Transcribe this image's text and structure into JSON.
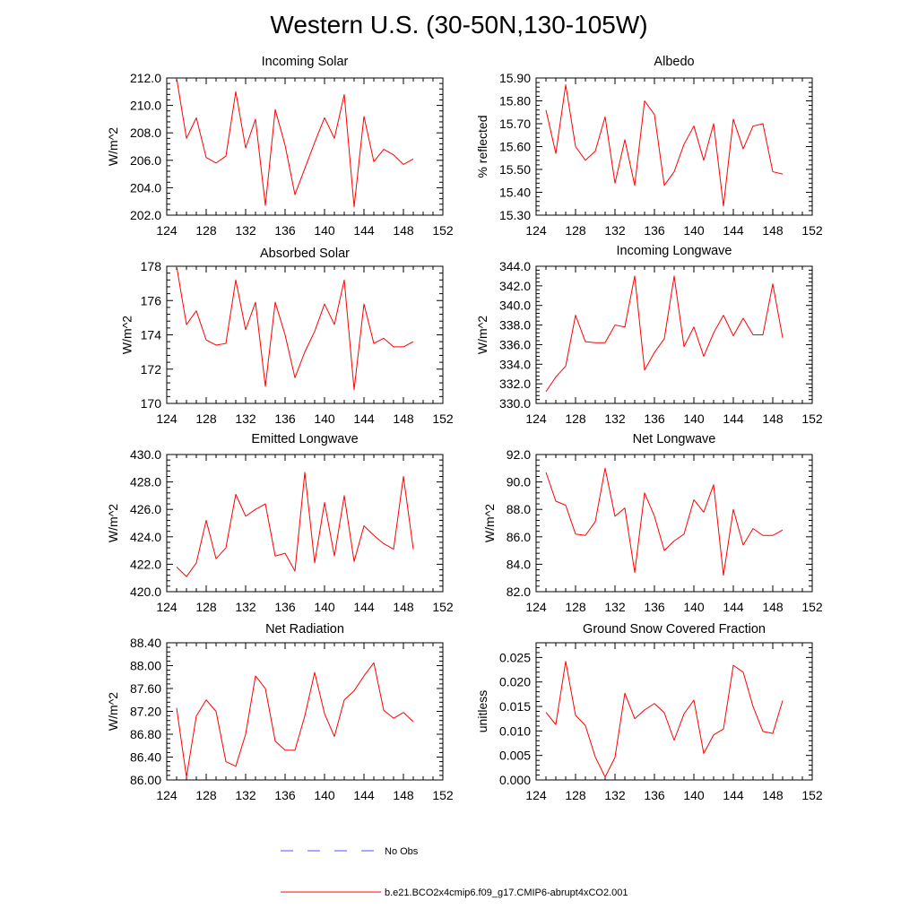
{
  "page": {
    "title": "Western U.S. (30-50N,130-105W)"
  },
  "legend": [
    {
      "label": "No Obs",
      "color": "#5050ff",
      "dash": true
    },
    {
      "label": "b.e21.BCO2x4cmip6.f09_g17.CMIP6-abrupt4xCO2.001",
      "color": "#ff0000",
      "dash": false
    }
  ],
  "chart_data": [
    {
      "type": "line",
      "title": "Incoming Solar",
      "ylabel": "W/m^2",
      "xlim": [
        124,
        152
      ],
      "xticks": [
        "124",
        "128",
        "132",
        "136",
        "140",
        "144",
        "148",
        "152"
      ],
      "ylim": [
        202,
        212
      ],
      "yticks": [
        "202.0",
        "204.0",
        "206.0",
        "208.0",
        "210.0",
        "212.0"
      ],
      "x": [
        125,
        126,
        127,
        128,
        129,
        130,
        131,
        132,
        133,
        134,
        135,
        136,
        137,
        138,
        139,
        140,
        141,
        142,
        143,
        144,
        145,
        146,
        147,
        148,
        149
      ],
      "series": [
        {
          "values": [
            212.0,
            207.6,
            209.1,
            206.2,
            205.8,
            206.3,
            211.0,
            206.9,
            209.0,
            202.7,
            209.7,
            207.1,
            203.5,
            205.4,
            207.3,
            209.1,
            207.6,
            210.8,
            202.6,
            209.2,
            205.9,
            206.8,
            206.4,
            205.7,
            206.1
          ],
          "color": "#ff0000"
        }
      ]
    },
    {
      "type": "line",
      "title": "Albedo",
      "ylabel": "% reflected",
      "xlim": [
        124,
        152
      ],
      "xticks": [
        "124",
        "128",
        "132",
        "136",
        "140",
        "144",
        "148",
        "152"
      ],
      "ylim": [
        15.3,
        15.9
      ],
      "yticks": [
        "15.30",
        "15.40",
        "15.50",
        "15.60",
        "15.70",
        "15.80",
        "15.90"
      ],
      "x": [
        125,
        126,
        127,
        128,
        129,
        130,
        131,
        132,
        133,
        134,
        135,
        136,
        137,
        138,
        139,
        140,
        141,
        142,
        143,
        144,
        145,
        146,
        147,
        148,
        149
      ],
      "series": [
        {
          "values": [
            15.76,
            15.57,
            15.87,
            15.6,
            15.54,
            15.58,
            15.73,
            15.44,
            15.63,
            15.43,
            15.8,
            15.74,
            15.43,
            15.49,
            15.61,
            15.69,
            15.54,
            15.7,
            15.34,
            15.72,
            15.59,
            15.69,
            15.7,
            15.49,
            15.48
          ],
          "color": "#ff0000"
        }
      ]
    },
    {
      "type": "line",
      "title": "Absorbed Solar",
      "ylabel": "W/m^2",
      "xlim": [
        124,
        152
      ],
      "xticks": [
        "124",
        "128",
        "132",
        "136",
        "140",
        "144",
        "148",
        "152"
      ],
      "ylim": [
        170,
        178
      ],
      "yticks": [
        "170",
        "172",
        "174",
        "176",
        "178"
      ],
      "x": [
        125,
        126,
        127,
        128,
        129,
        130,
        131,
        132,
        133,
        134,
        135,
        136,
        137,
        138,
        139,
        140,
        141,
        142,
        143,
        144,
        145,
        146,
        147,
        148,
        149
      ],
      "series": [
        {
          "values": [
            178.0,
            174.6,
            175.4,
            173.7,
            173.4,
            173.5,
            177.2,
            174.3,
            175.9,
            171.0,
            175.9,
            174.0,
            171.5,
            173.0,
            174.2,
            175.8,
            174.6,
            177.2,
            170.8,
            175.8,
            173.5,
            173.8,
            173.3,
            173.3,
            173.6
          ],
          "color": "#ff0000"
        }
      ]
    },
    {
      "type": "line",
      "title": "Incoming Longwave",
      "ylabel": "W/m^2",
      "xlim": [
        124,
        152
      ],
      "xticks": [
        "124",
        "128",
        "132",
        "136",
        "140",
        "144",
        "148",
        "152"
      ],
      "ylim": [
        330,
        344
      ],
      "yticks": [
        "330.0",
        "332.0",
        "334.0",
        "336.0",
        "338.0",
        "340.0",
        "342.0",
        "344.0"
      ],
      "x": [
        125,
        126,
        127,
        128,
        129,
        130,
        131,
        132,
        133,
        134,
        135,
        136,
        137,
        138,
        139,
        140,
        141,
        142,
        143,
        144,
        145,
        146,
        147,
        148,
        149
      ],
      "series": [
        {
          "values": [
            331.2,
            332.7,
            333.8,
            339.0,
            336.3,
            336.2,
            336.2,
            338.0,
            337.8,
            343.0,
            333.4,
            335.2,
            336.6,
            343.0,
            335.8,
            337.8,
            334.8,
            337.2,
            339.0,
            336.9,
            338.7,
            337.0,
            337.0,
            342.2,
            336.7
          ],
          "color": "#ff0000"
        }
      ]
    },
    {
      "type": "line",
      "title": "Emitted Longwave",
      "ylabel": "W/m^2",
      "xlim": [
        124,
        152
      ],
      "xticks": [
        "124",
        "128",
        "132",
        "136",
        "140",
        "144",
        "148",
        "152"
      ],
      "ylim": [
        420,
        430
      ],
      "yticks": [
        "420.0",
        "422.0",
        "424.0",
        "426.0",
        "428.0",
        "430.0"
      ],
      "x": [
        125,
        126,
        127,
        128,
        129,
        130,
        131,
        132,
        133,
        134,
        135,
        136,
        137,
        138,
        139,
        140,
        141,
        142,
        143,
        144,
        145,
        146,
        147,
        148,
        149
      ],
      "series": [
        {
          "values": [
            421.8,
            421.1,
            422.1,
            425.2,
            422.4,
            423.2,
            427.1,
            425.5,
            426.0,
            426.4,
            422.6,
            422.8,
            421.5,
            428.7,
            422.1,
            426.5,
            422.6,
            427.0,
            422.2,
            424.8,
            424.1,
            423.5,
            423.1,
            428.4,
            423.1
          ],
          "color": "#ff0000"
        }
      ]
    },
    {
      "type": "line",
      "title": "Net Longwave",
      "ylabel": "W/m^2",
      "xlim": [
        124,
        152
      ],
      "xticks": [
        "124",
        "128",
        "132",
        "136",
        "140",
        "144",
        "148",
        "152"
      ],
      "ylim": [
        82,
        92
      ],
      "yticks": [
        "82.0",
        "84.0",
        "86.0",
        "88.0",
        "90.0",
        "92.0"
      ],
      "x": [
        125,
        126,
        127,
        128,
        129,
        130,
        131,
        132,
        133,
        134,
        135,
        136,
        137,
        138,
        139,
        140,
        141,
        142,
        143,
        144,
        145,
        146,
        147,
        148,
        149
      ],
      "series": [
        {
          "values": [
            90.7,
            88.6,
            88.3,
            86.2,
            86.1,
            87.1,
            91.0,
            87.5,
            88.1,
            83.4,
            89.2,
            87.5,
            85.0,
            85.7,
            86.2,
            88.7,
            87.8,
            89.8,
            83.2,
            88.0,
            85.4,
            86.6,
            86.1,
            86.1,
            86.5
          ],
          "color": "#ff0000"
        }
      ]
    },
    {
      "type": "line",
      "title": "Net Radiation",
      "ylabel": "W/m^2",
      "xlim": [
        124,
        152
      ],
      "xticks": [
        "124",
        "128",
        "132",
        "136",
        "140",
        "144",
        "148",
        "152"
      ],
      "ylim": [
        86.0,
        88.4
      ],
      "yticks": [
        "86.00",
        "86.40",
        "86.80",
        "87.20",
        "87.60",
        "88.00",
        "88.40"
      ],
      "x": [
        125,
        126,
        127,
        128,
        129,
        130,
        131,
        132,
        133,
        134,
        135,
        136,
        137,
        138,
        139,
        140,
        141,
        142,
        143,
        144,
        145,
        146,
        147,
        148,
        149
      ],
      "series": [
        {
          "values": [
            87.26,
            86.05,
            87.12,
            87.4,
            87.2,
            86.32,
            86.24,
            86.8,
            87.82,
            87.6,
            86.68,
            86.52,
            86.52,
            87.12,
            87.88,
            87.16,
            86.76,
            87.4,
            87.56,
            87.82,
            88.05,
            87.22,
            87.08,
            87.18,
            87.02
          ],
          "color": "#ff0000"
        }
      ]
    },
    {
      "type": "line",
      "title": "Ground Snow Covered Fraction",
      "ylabel": "unitless",
      "xlim": [
        124,
        152
      ],
      "xticks": [
        "124",
        "128",
        "132",
        "136",
        "140",
        "144",
        "148",
        "152"
      ],
      "ylim": [
        0.0,
        0.028
      ],
      "yticks": [
        "0.000",
        "0.005",
        "0.010",
        "0.015",
        "0.020",
        "0.025"
      ],
      "x": [
        125,
        126,
        127,
        128,
        129,
        130,
        131,
        132,
        133,
        134,
        135,
        136,
        137,
        138,
        139,
        140,
        141,
        142,
        143,
        144,
        145,
        146,
        147,
        148,
        149
      ],
      "series": [
        {
          "values": [
            0.0138,
            0.0113,
            0.0242,
            0.0132,
            0.0111,
            0.0047,
            0.0006,
            0.0046,
            0.0177,
            0.0125,
            0.0143,
            0.0156,
            0.0137,
            0.0081,
            0.0135,
            0.0163,
            0.0054,
            0.0092,
            0.0104,
            0.0234,
            0.022,
            0.015,
            0.0099,
            0.0095,
            0.0162
          ],
          "color": "#ff0000"
        }
      ]
    }
  ]
}
